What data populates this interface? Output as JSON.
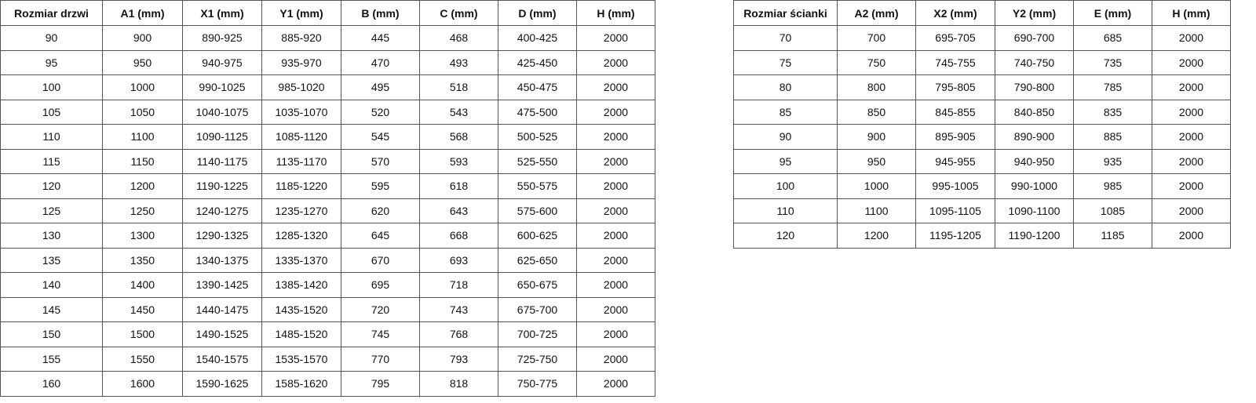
{
  "doors_table": {
    "headers": [
      "Rozmiar drzwi",
      "A1 (mm)",
      "X1 (mm)",
      "Y1 (mm)",
      "B (mm)",
      "C (mm)",
      "D (mm)",
      "H (mm)"
    ],
    "rows": [
      [
        "90",
        "900",
        "890-925",
        "885-920",
        "445",
        "468",
        "400-425",
        "2000"
      ],
      [
        "95",
        "950",
        "940-975",
        "935-970",
        "470",
        "493",
        "425-450",
        "2000"
      ],
      [
        "100",
        "1000",
        "990-1025",
        "985-1020",
        "495",
        "518",
        "450-475",
        "2000"
      ],
      [
        "105",
        "1050",
        "1040-1075",
        "1035-1070",
        "520",
        "543",
        "475-500",
        "2000"
      ],
      [
        "110",
        "1100",
        "1090-1125",
        "1085-1120",
        "545",
        "568",
        "500-525",
        "2000"
      ],
      [
        "115",
        "1150",
        "1140-1175",
        "1135-1170",
        "570",
        "593",
        "525-550",
        "2000"
      ],
      [
        "120",
        "1200",
        "1190-1225",
        "1185-1220",
        "595",
        "618",
        "550-575",
        "2000"
      ],
      [
        "125",
        "1250",
        "1240-1275",
        "1235-1270",
        "620",
        "643",
        "575-600",
        "2000"
      ],
      [
        "130",
        "1300",
        "1290-1325",
        "1285-1320",
        "645",
        "668",
        "600-625",
        "2000"
      ],
      [
        "135",
        "1350",
        "1340-1375",
        "1335-1370",
        "670",
        "693",
        "625-650",
        "2000"
      ],
      [
        "140",
        "1400",
        "1390-1425",
        "1385-1420",
        "695",
        "718",
        "650-675",
        "2000"
      ],
      [
        "145",
        "1450",
        "1440-1475",
        "1435-1520",
        "720",
        "743",
        "675-700",
        "2000"
      ],
      [
        "150",
        "1500",
        "1490-1525",
        "1485-1520",
        "745",
        "768",
        "700-725",
        "2000"
      ],
      [
        "155",
        "1550",
        "1540-1575",
        "1535-1570",
        "770",
        "793",
        "725-750",
        "2000"
      ],
      [
        "160",
        "1600",
        "1590-1625",
        "1585-1620",
        "795",
        "818",
        "750-775",
        "2000"
      ]
    ]
  },
  "wall_table": {
    "headers": [
      "Rozmiar ścianki",
      "A2 (mm)",
      "X2 (mm)",
      "Y2 (mm)",
      "E (mm)",
      "H (mm)"
    ],
    "rows": [
      [
        "70",
        "700",
        "695-705",
        "690-700",
        "685",
        "2000"
      ],
      [
        "75",
        "750",
        "745-755",
        "740-750",
        "735",
        "2000"
      ],
      [
        "80",
        "800",
        "795-805",
        "790-800",
        "785",
        "2000"
      ],
      [
        "85",
        "850",
        "845-855",
        "840-850",
        "835",
        "2000"
      ],
      [
        "90",
        "900",
        "895-905",
        "890-900",
        "885",
        "2000"
      ],
      [
        "95",
        "950",
        "945-955",
        "940-950",
        "935",
        "2000"
      ],
      [
        "100",
        "1000",
        "995-1005",
        "990-1000",
        "985",
        "2000"
      ],
      [
        "110",
        "1100",
        "1095-1105",
        "1090-1100",
        "1085",
        "2000"
      ],
      [
        "120",
        "1200",
        "1195-1205",
        "1190-1200",
        "1185",
        "2000"
      ]
    ]
  }
}
